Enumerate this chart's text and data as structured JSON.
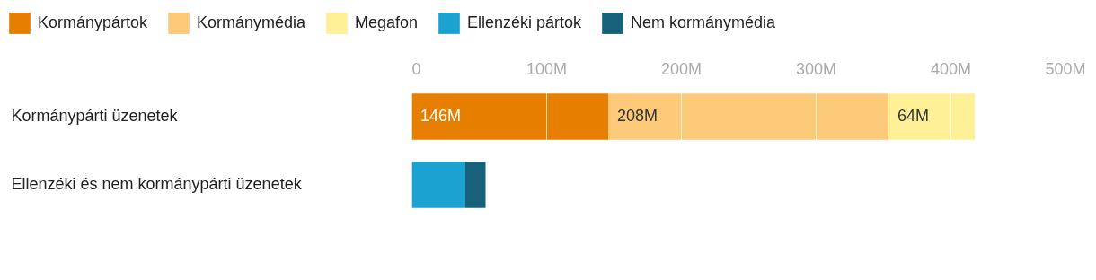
{
  "chart_data": {
    "type": "bar",
    "orientation": "horizontal",
    "stacked": true,
    "categories": [
      "Kormánypárti üzenetek",
      "Ellenzéki és nem kormánypárti üzenetek"
    ],
    "series": [
      {
        "name": "Kormánypártok",
        "color": "#e67e00",
        "values": [
          146,
          null
        ],
        "value_labels": [
          "146M",
          null
        ]
      },
      {
        "name": "Kormánymédia",
        "color": "#fdca79",
        "values": [
          208,
          null
        ],
        "value_labels": [
          "208M",
          null
        ]
      },
      {
        "name": "Megafon",
        "color": "#fef097",
        "values": [
          64,
          null
        ],
        "value_labels": [
          "64M",
          null
        ]
      },
      {
        "name": "Ellenzéki pártok",
        "color": "#1ba2d1",
        "values": [
          null,
          40
        ]
      },
      {
        "name": "Nem kormánymédia",
        "color": "#17627a",
        "values": [
          null,
          15
        ]
      }
    ],
    "xlim": [
      0,
      500
    ],
    "xticks": [
      0,
      {
        "value": 100,
        "label": "100M"
      },
      {
        "value": 200,
        "label": "200M"
      },
      {
        "value": 300,
        "label": "300M"
      },
      {
        "value": 400,
        "label": "400M"
      },
      {
        "value": 500,
        "label": "500M"
      }
    ],
    "grid": "x",
    "legend": "top left"
  }
}
